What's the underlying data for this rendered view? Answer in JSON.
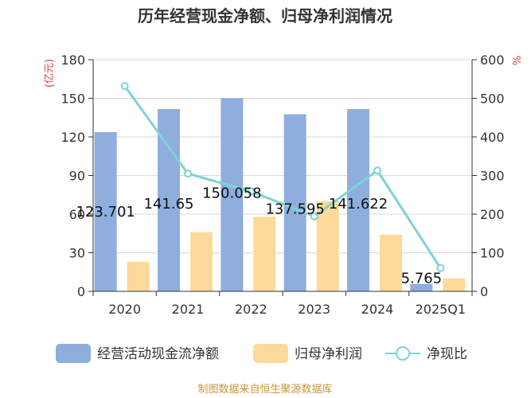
{
  "chart_data": {
    "type": "bar",
    "title": "历年经营现金净额、归母净利润情况",
    "categories": [
      "2020",
      "2021",
      "2022",
      "2023",
      "2024",
      "2025Q1"
    ],
    "left_axis": {
      "unit": "(亿元)",
      "ticks": [
        "0",
        "30",
        "60",
        "90",
        "120",
        "150",
        "180"
      ],
      "ylim": [
        0,
        180
      ]
    },
    "right_axis": {
      "unit": "%",
      "ticks": [
        "0",
        "100",
        "200",
        "300",
        "400",
        "500",
        "600"
      ],
      "ylim": [
        0,
        600
      ]
    },
    "series": [
      {
        "name": "经营活动现金流净额",
        "type": "bar",
        "axis": "left",
        "color": "#8eaedd",
        "values": [
          123.701,
          141.65,
          150.058,
          137.595,
          141.622,
          5.765
        ],
        "labels": [
          "123.701",
          "141.65",
          "150.058",
          "137.595",
          "141.622",
          "5.765"
        ]
      },
      {
        "name": "归母净利润",
        "type": "bar",
        "axis": "left",
        "color": "#fdd99b",
        "values": [
          23,
          46,
          58,
          70,
          44,
          10
        ]
      },
      {
        "name": "净现比",
        "type": "line",
        "axis": "right",
        "color": "#7dd3d6",
        "values": [
          532,
          305,
          259,
          194,
          313,
          60
        ]
      }
    ],
    "grid": true,
    "legend_position": "bottom"
  },
  "footer": {
    "source": "制图数据来自恒生聚源数据库"
  }
}
